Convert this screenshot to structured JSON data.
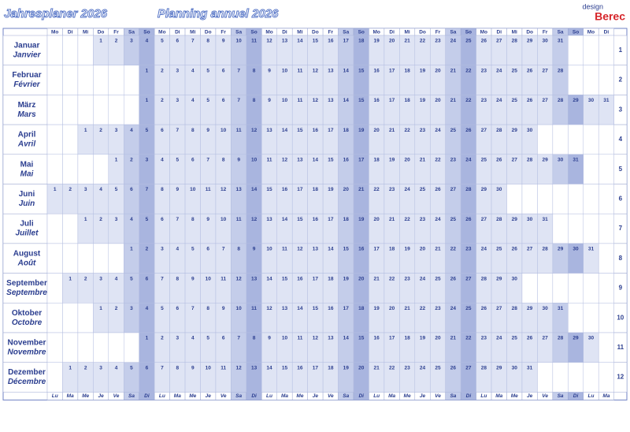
{
  "header": {
    "title_de": "Jahresplaner 2026",
    "title_fr": "Planning annuel 2026",
    "logo_small": "design",
    "logo": "Berec",
    "weekdays_de": [
      "Mo",
      "Di",
      "Mi",
      "Do",
      "Fr",
      "Sa",
      "So"
    ],
    "weekdays_fr": [
      "Lu",
      "Ma",
      "Me",
      "Je",
      "Ve",
      "Sa",
      "Di"
    ]
  },
  "table": {
    "rows": [
      {
        "de": "Januar",
        "fr": "Janvier",
        "number": 1,
        "days": [
          null,
          null,
          null,
          1,
          2,
          3,
          4,
          5,
          6,
          7,
          8,
          9,
          10,
          11,
          12,
          13,
          14,
          15,
          16,
          17,
          18,
          19,
          20,
          21,
          22,
          23,
          24,
          25,
          26,
          27,
          28,
          29,
          30,
          31,
          null,
          null,
          null
        ]
      },
      {
        "de": "Februar",
        "fr": "Février",
        "number": 2,
        "days": [
          null,
          null,
          null,
          null,
          null,
          null,
          1,
          2,
          3,
          4,
          5,
          6,
          7,
          8,
          9,
          10,
          11,
          12,
          13,
          14,
          15,
          16,
          17,
          18,
          19,
          20,
          21,
          22,
          23,
          24,
          25,
          26,
          27,
          28,
          null,
          null,
          null
        ]
      },
      {
        "de": "März",
        "fr": "Mars",
        "number": 3,
        "days": [
          null,
          null,
          null,
          null,
          null,
          null,
          1,
          2,
          3,
          4,
          5,
          6,
          7,
          8,
          9,
          10,
          11,
          12,
          13,
          14,
          15,
          16,
          17,
          18,
          19,
          20,
          21,
          22,
          23,
          24,
          25,
          26,
          27,
          28,
          29,
          30,
          31
        ]
      },
      {
        "de": "April",
        "fr": "Avril",
        "number": 4,
        "days": [
          null,
          null,
          1,
          2,
          3,
          4,
          5,
          6,
          7,
          8,
          9,
          10,
          11,
          12,
          13,
          14,
          15,
          16,
          17,
          18,
          19,
          20,
          21,
          22,
          23,
          24,
          25,
          26,
          27,
          28,
          29,
          30,
          null,
          null,
          null,
          null,
          null
        ]
      },
      {
        "de": "Mai",
        "fr": "Mai",
        "number": 5,
        "days": [
          null,
          null,
          null,
          null,
          1,
          2,
          3,
          4,
          5,
          6,
          7,
          8,
          9,
          10,
          11,
          12,
          13,
          14,
          15,
          16,
          17,
          18,
          19,
          20,
          21,
          22,
          23,
          24,
          25,
          26,
          27,
          28,
          29,
          30,
          31,
          null,
          null
        ]
      },
      {
        "de": "Juni",
        "fr": "Juin",
        "number": 6,
        "days": [
          1,
          2,
          3,
          4,
          5,
          6,
          7,
          8,
          9,
          10,
          11,
          12,
          13,
          14,
          15,
          16,
          17,
          18,
          19,
          20,
          21,
          22,
          23,
          24,
          25,
          26,
          27,
          28,
          29,
          30,
          null,
          null,
          null,
          null,
          null,
          null,
          null
        ]
      },
      {
        "de": "Juli",
        "fr": "Juillet",
        "number": 7,
        "days": [
          null,
          null,
          1,
          2,
          3,
          4,
          5,
          6,
          7,
          8,
          9,
          10,
          11,
          12,
          13,
          14,
          15,
          16,
          17,
          18,
          19,
          20,
          21,
          22,
          23,
          24,
          25,
          26,
          27,
          28,
          29,
          30,
          31,
          null,
          null,
          null,
          null
        ]
      },
      {
        "de": "August",
        "fr": "Août",
        "number": 8,
        "days": [
          null,
          null,
          null,
          null,
          null,
          1,
          2,
          3,
          4,
          5,
          6,
          7,
          8,
          9,
          10,
          11,
          12,
          13,
          14,
          15,
          16,
          17,
          18,
          19,
          20,
          21,
          22,
          23,
          24,
          25,
          26,
          27,
          28,
          29,
          30,
          31,
          null
        ]
      },
      {
        "de": "September",
        "fr": "Septembre",
        "number": 9,
        "days": [
          null,
          1,
          2,
          3,
          4,
          5,
          6,
          7,
          8,
          9,
          10,
          11,
          12,
          13,
          14,
          15,
          16,
          17,
          18,
          19,
          20,
          21,
          22,
          23,
          24,
          25,
          26,
          27,
          28,
          29,
          30,
          null,
          null,
          null,
          null,
          null,
          null
        ]
      },
      {
        "de": "Oktober",
        "fr": "Octobre",
        "number": 10,
        "days": [
          null,
          null,
          null,
          1,
          2,
          3,
          4,
          5,
          6,
          7,
          8,
          9,
          10,
          11,
          12,
          13,
          14,
          15,
          16,
          17,
          18,
          19,
          20,
          21,
          22,
          23,
          24,
          25,
          26,
          27,
          28,
          29,
          30,
          31,
          null,
          null,
          null
        ]
      },
      {
        "de": "November",
        "fr": "Novembre",
        "number": 11,
        "days": [
          null,
          null,
          null,
          null,
          null,
          null,
          1,
          2,
          3,
          4,
          5,
          6,
          7,
          8,
          9,
          10,
          11,
          12,
          13,
          14,
          15,
          16,
          17,
          18,
          19,
          20,
          21,
          22,
          23,
          24,
          25,
          26,
          27,
          28,
          29,
          30,
          null
        ]
      },
      {
        "de": "Dezember",
        "fr": "Décembre",
        "number": 12,
        "days": [
          null,
          1,
          2,
          3,
          4,
          5,
          6,
          7,
          8,
          9,
          10,
          11,
          12,
          13,
          14,
          15,
          16,
          17,
          18,
          19,
          20,
          21,
          22,
          23,
          24,
          25,
          26,
          27,
          28,
          29,
          30,
          31,
          null,
          null,
          null,
          null,
          null
        ]
      }
    ]
  }
}
